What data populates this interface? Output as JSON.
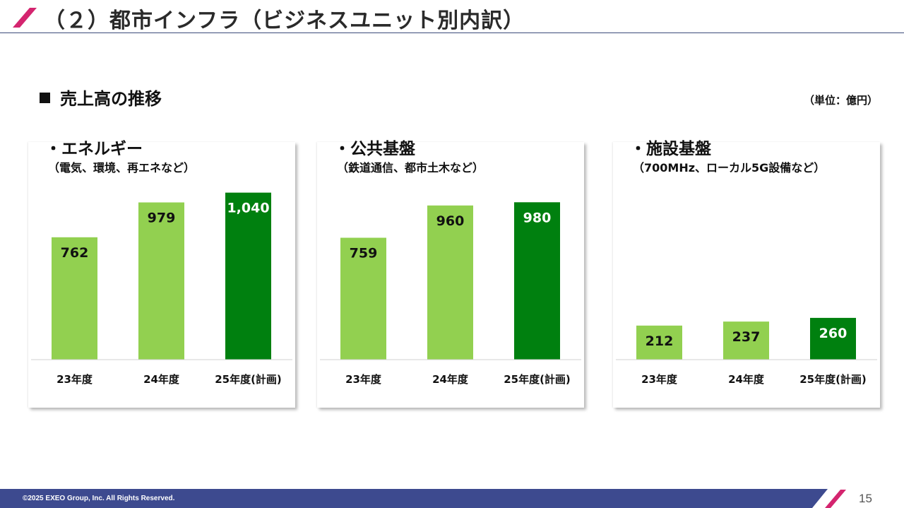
{
  "header": {
    "title": "（２）都市インフラ（ビジネスユニット別内訳）"
  },
  "section": {
    "heading": "売上高の推移",
    "unit": "（単位：億円）"
  },
  "colors": {
    "accent": "#d4256f",
    "navy": "#3d4a8f",
    "bar_actual": "#92d050",
    "bar_plan": "#00800f"
  },
  "chart_data": [
    {
      "type": "bar",
      "title": "・エネルギー",
      "subtitle": "（電気、環境、再エネなど）",
      "categories": [
        "23年度",
        "24年度",
        "25年度(計画)"
      ],
      "values": [
        762,
        979,
        1040
      ],
      "labels": [
        "762",
        "979",
        "1,040"
      ],
      "ylim": [
        0,
        1100
      ]
    },
    {
      "type": "bar",
      "title": "・公共基盤",
      "subtitle": "（鉄道通信、都市土木など）",
      "categories": [
        "23年度",
        "24年度",
        "25年度(計画)"
      ],
      "values": [
        759,
        960,
        980
      ],
      "labels": [
        "759",
        "960",
        "980"
      ],
      "ylim": [
        0,
        1100
      ]
    },
    {
      "type": "bar",
      "title": "・施設基盤",
      "subtitle": "（700MHz、ローカル5G設備など）",
      "categories": [
        "23年度",
        "24年度",
        "25年度(計画)"
      ],
      "values": [
        212,
        237,
        260
      ],
      "labels": [
        "212",
        "237",
        "260"
      ],
      "ylim": [
        0,
        1100
      ]
    }
  ],
  "footer": {
    "copyright": "©2025 EXEO Group, Inc. All Rights Reserved.",
    "page": "15"
  }
}
